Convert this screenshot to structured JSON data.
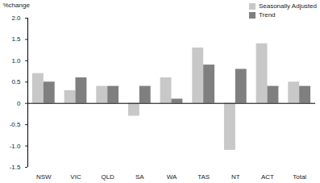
{
  "chart_data": {
    "type": "bar",
    "categories": [
      "NSW",
      "VIC",
      "QLD",
      "SA",
      "WA",
      "TAS",
      "NT",
      "ACT",
      "Total"
    ],
    "series": [
      {
        "name": "Seasonally Adjusted",
        "color": "#c8c8c8",
        "values": [
          0.7,
          0.3,
          0.4,
          -0.3,
          0.6,
          1.3,
          -1.1,
          1.4,
          0.5
        ]
      },
      {
        "name": "Trend",
        "color": "#7f7f7f",
        "values": [
          0.5,
          0.6,
          0.4,
          0.4,
          0.1,
          0.9,
          0.8,
          0.4,
          0.4
        ]
      }
    ],
    "y_label": "%change",
    "ylim": [
      -1.5,
      2.0
    ],
    "yticks": [
      -1.5,
      {
        "value": -1.0,
        "label": "-1.0"
      },
      -0.5,
      0,
      0.5,
      {
        "value": 1.0,
        "label": "1.0"
      },
      1.5,
      {
        "value": 2.0,
        "label": "2.0"
      }
    ],
    "legend": "top-right",
    "grid": false
  }
}
